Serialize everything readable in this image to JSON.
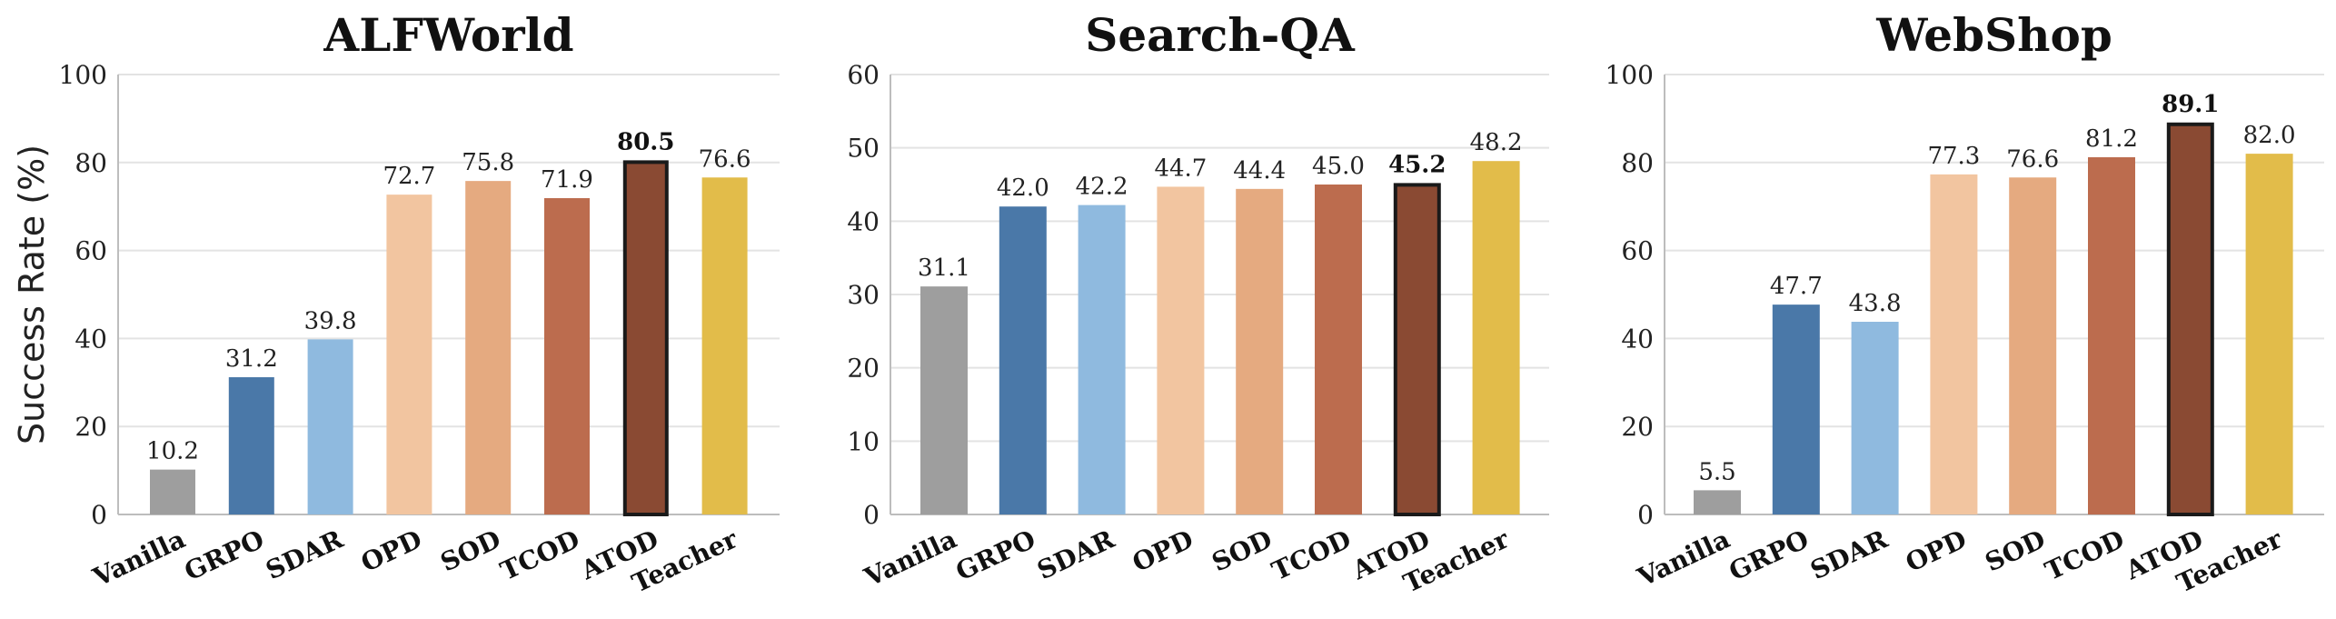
{
  "chart_data": [
    {
      "type": "bar",
      "title": "ALFWorld",
      "ylabel": "Success Rate (%)",
      "xlabel": "",
      "ylim": [
        0,
        100
      ],
      "yticks": [
        "0",
        "20",
        "40",
        "60",
        "80",
        "100"
      ],
      "categories": [
        "Vanilla",
        "GRPO",
        "SDAR",
        "OPD",
        "SOD",
        "TCOD",
        "ATOD",
        "Teacher"
      ],
      "values": [
        10.2,
        31.2,
        39.8,
        72.7,
        75.8,
        71.9,
        80.5,
        76.6
      ],
      "value_labels": [
        "10.2",
        "31.2",
        "39.8",
        "72.7",
        "75.8",
        "71.9",
        "80.5",
        "76.6"
      ],
      "highlight": "ATOD",
      "grid": true
    },
    {
      "type": "bar",
      "title": "Search-QA",
      "ylabel": "",
      "xlabel": "",
      "ylim": [
        0,
        60
      ],
      "yticks": [
        "0",
        "10",
        "20",
        "30",
        "40",
        "50",
        "60"
      ],
      "categories": [
        "Vanilla",
        "GRPO",
        "SDAR",
        "OPD",
        "SOD",
        "TCOD",
        "ATOD",
        "Teacher"
      ],
      "values": [
        31.1,
        42.0,
        42.2,
        44.7,
        44.4,
        45.0,
        45.2,
        48.2
      ],
      "value_labels": [
        "31.1",
        "42.0",
        "42.2",
        "44.7",
        "44.4",
        "45.0",
        "45.2",
        "48.2"
      ],
      "highlight": "ATOD",
      "grid": true
    },
    {
      "type": "bar",
      "title": "WebShop",
      "ylabel": "",
      "xlabel": "",
      "ylim": [
        0,
        100
      ],
      "yticks": [
        "0",
        "20",
        "40",
        "60",
        "80",
        "100"
      ],
      "categories": [
        "Vanilla",
        "GRPO",
        "SDAR",
        "OPD",
        "SOD",
        "TCOD",
        "ATOD",
        "Teacher"
      ],
      "values": [
        5.5,
        47.7,
        43.8,
        77.3,
        76.6,
        81.2,
        89.1,
        82.0
      ],
      "value_labels": [
        "5.5",
        "47.7",
        "43.8",
        "77.3",
        "76.6",
        "81.2",
        "89.1",
        "82.0"
      ],
      "highlight": "ATOD",
      "grid": true
    }
  ],
  "colors": {
    "Vanilla": "#9e9e9e",
    "GRPO": "#4a78a8",
    "SDAR": "#8fbadf",
    "OPD": "#f2c5a0",
    "SOD": "#e5aa80",
    "TCOD": "#bc6c4e",
    "ATOD": "#8a4a33",
    "Teacher": "#e2bc4a",
    "highlight_edge": "#1a1a1a"
  }
}
